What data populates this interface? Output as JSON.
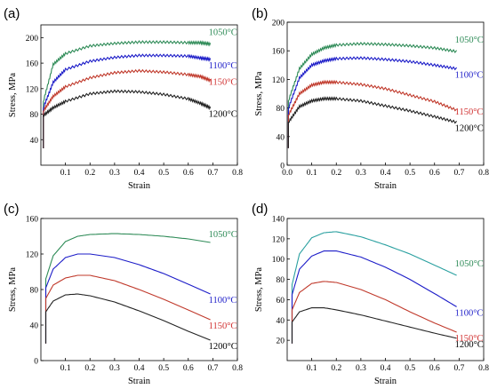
{
  "figure": {
    "panels": [
      {
        "label": "(a)",
        "chart_index": 0
      },
      {
        "label": "(b)",
        "chart_index": 1
      },
      {
        "label": "(c)",
        "chart_index": 2
      },
      {
        "label": "(d)",
        "chart_index": 3
      }
    ]
  },
  "chart_data": [
    {
      "type": "line",
      "xlabel": "Strain",
      "ylabel": "Stress, MPa",
      "xlim": [
        0,
        0.8
      ],
      "ylim": [
        0,
        220
      ],
      "xticks": [
        "0.1",
        "0.2",
        "0.3",
        "0.4",
        "0.5",
        "0.6",
        "0.7",
        "0.8"
      ],
      "yticks": [
        "40",
        "80",
        "120",
        "160",
        "200"
      ],
      "ytick_values": [
        40,
        80,
        120,
        160,
        200
      ],
      "grid": false,
      "serrated": true,
      "series": [
        {
          "name": "1050°C",
          "color": "#2e8b57",
          "label_color": "#2e8b57",
          "points": [
            [
              0.01,
              100
            ],
            [
              0.05,
              158
            ],
            [
              0.1,
              175
            ],
            [
              0.2,
              187
            ],
            [
              0.3,
              191
            ],
            [
              0.4,
              193
            ],
            [
              0.5,
              193
            ],
            [
              0.6,
              192
            ],
            [
              0.65,
              192
            ],
            [
              0.69,
              190
            ]
          ]
        },
        {
          "name": "1100°C",
          "color": "#1c1cc8",
          "label_color": "#1c1cc8",
          "points": [
            [
              0.01,
              90
            ],
            [
              0.05,
              130
            ],
            [
              0.1,
              150
            ],
            [
              0.2,
              163
            ],
            [
              0.3,
              169
            ],
            [
              0.4,
              172
            ],
            [
              0.5,
              172
            ],
            [
              0.6,
              171
            ],
            [
              0.65,
              168
            ],
            [
              0.69,
              166
            ]
          ]
        },
        {
          "name": "1150°C",
          "color": "#c0392b",
          "label_color": "#d03030",
          "points": [
            [
              0.01,
              85
            ],
            [
              0.05,
              108
            ],
            [
              0.1,
              123
            ],
            [
              0.2,
              137
            ],
            [
              0.3,
              145
            ],
            [
              0.4,
              148
            ],
            [
              0.5,
              146
            ],
            [
              0.6,
              142
            ],
            [
              0.65,
              139
            ],
            [
              0.69,
              133
            ]
          ]
        },
        {
          "name": "1200°C",
          "color": "#222222",
          "label_color": "#000000",
          "points": [
            [
              0.01,
              78
            ],
            [
              0.05,
              90
            ],
            [
              0.1,
              100
            ],
            [
              0.2,
              112
            ],
            [
              0.3,
              116
            ],
            [
              0.4,
              115
            ],
            [
              0.5,
              111
            ],
            [
              0.6,
              104
            ],
            [
              0.65,
              97
            ],
            [
              0.69,
              90
            ]
          ]
        }
      ]
    },
    {
      "type": "line",
      "xlabel": "Strain",
      "ylabel": "Stress, MPa",
      "xlim": [
        0,
        0.8
      ],
      "ylim": [
        0,
        200
      ],
      "xticks": [
        "0.0",
        "0.1",
        "0.2",
        "0.3",
        "0.4",
        "0.5",
        "0.6",
        "0.7",
        "0.8"
      ],
      "yticks": [
        "0",
        "40",
        "80",
        "120",
        "160",
        "200"
      ],
      "ytick_values": [
        0,
        40,
        80,
        120,
        160,
        200
      ],
      "grid": false,
      "serrated": true,
      "series": [
        {
          "name": "1050°C",
          "color": "#2e8b57",
          "label_color": "#2e8b57",
          "points": [
            [
              0.005,
              90
            ],
            [
              0.05,
              135
            ],
            [
              0.1,
              155
            ],
            [
              0.15,
              164
            ],
            [
              0.2,
              168
            ],
            [
              0.3,
              170
            ],
            [
              0.4,
              169
            ],
            [
              0.5,
              167
            ],
            [
              0.6,
              164
            ],
            [
              0.69,
              159
            ]
          ]
        },
        {
          "name": "1100°C",
          "color": "#1c1cc8",
          "label_color": "#1c1cc8",
          "points": [
            [
              0.005,
              80
            ],
            [
              0.05,
              122
            ],
            [
              0.1,
              140
            ],
            [
              0.15,
              146
            ],
            [
              0.2,
              149
            ],
            [
              0.3,
              150
            ],
            [
              0.4,
              148
            ],
            [
              0.5,
              145
            ],
            [
              0.6,
              140
            ],
            [
              0.69,
              135
            ]
          ]
        },
        {
          "name": "1150°C",
          "color": "#c0392b",
          "label_color": "#d03030",
          "points": [
            [
              0.005,
              70
            ],
            [
              0.05,
              100
            ],
            [
              0.1,
              112
            ],
            [
              0.15,
              116
            ],
            [
              0.2,
              116
            ],
            [
              0.3,
              113
            ],
            [
              0.4,
              107
            ],
            [
              0.5,
              98
            ],
            [
              0.6,
              89
            ],
            [
              0.69,
              77
            ]
          ]
        },
        {
          "name": "1200°C",
          "color": "#222222",
          "label_color": "#000000",
          "points": [
            [
              0.005,
              60
            ],
            [
              0.05,
              82
            ],
            [
              0.1,
              90
            ],
            [
              0.15,
              93
            ],
            [
              0.2,
              93
            ],
            [
              0.3,
              90
            ],
            [
              0.4,
              83
            ],
            [
              0.5,
              76
            ],
            [
              0.6,
              68
            ],
            [
              0.69,
              60
            ]
          ]
        }
      ]
    },
    {
      "type": "line",
      "xlabel": "Strain",
      "ylabel": "Stress, MPa",
      "xlim": [
        0,
        0.8
      ],
      "ylim": [
        0,
        160
      ],
      "xticks": [
        "0.1",
        "0.2",
        "0.3",
        "0.4",
        "0.5",
        "0.6",
        "0.7",
        "0.8"
      ],
      "yticks": [
        "0",
        "40",
        "80",
        "120",
        "160"
      ],
      "ytick_values": [
        0,
        40,
        80,
        120,
        160
      ],
      "grid": false,
      "serrated": false,
      "series": [
        {
          "name": "1050°C",
          "color": "#2e8b57",
          "label_color": "#2e8b57",
          "points": [
            [
              0.02,
              92
            ],
            [
              0.05,
              118
            ],
            [
              0.1,
              134
            ],
            [
              0.15,
              140
            ],
            [
              0.2,
              142
            ],
            [
              0.3,
              143
            ],
            [
              0.4,
              142
            ],
            [
              0.5,
              140
            ],
            [
              0.6,
              137
            ],
            [
              0.69,
              133
            ]
          ]
        },
        {
          "name": "1100°C",
          "color": "#1c1cc8",
          "label_color": "#1c1cc8",
          "points": [
            [
              0.02,
              82
            ],
            [
              0.05,
              103
            ],
            [
              0.1,
              116
            ],
            [
              0.15,
              120
            ],
            [
              0.2,
              120
            ],
            [
              0.3,
              116
            ],
            [
              0.4,
              108
            ],
            [
              0.5,
              98
            ],
            [
              0.6,
              86
            ],
            [
              0.69,
              75
            ]
          ]
        },
        {
          "name": "1150°C",
          "color": "#c0392b",
          "label_color": "#d03030",
          "points": [
            [
              0.02,
              70
            ],
            [
              0.05,
              85
            ],
            [
              0.1,
              93
            ],
            [
              0.15,
              96
            ],
            [
              0.2,
              96
            ],
            [
              0.3,
              90
            ],
            [
              0.4,
              80
            ],
            [
              0.5,
              69
            ],
            [
              0.6,
              57
            ],
            [
              0.69,
              46
            ]
          ]
        },
        {
          "name": "1200°C",
          "color": "#222222",
          "label_color": "#000000",
          "points": [
            [
              0.02,
              55
            ],
            [
              0.05,
              67
            ],
            [
              0.1,
              74
            ],
            [
              0.15,
              75
            ],
            [
              0.2,
              73
            ],
            [
              0.3,
              66
            ],
            [
              0.4,
              56
            ],
            [
              0.5,
              45
            ],
            [
              0.6,
              33
            ],
            [
              0.69,
              23
            ]
          ]
        }
      ]
    },
    {
      "type": "line",
      "xlabel": "Strain",
      "ylabel": "Stress, MPa",
      "xlim": [
        0,
        0.8
      ],
      "ylim": [
        0,
        140
      ],
      "xticks": [
        "0.1",
        "0.2",
        "0.3",
        "0.4",
        "0.5",
        "0.6",
        "0.7",
        "0.8"
      ],
      "yticks": [
        "20",
        "40",
        "60",
        "80",
        "100",
        "120",
        "140"
      ],
      "ytick_values": [
        20,
        40,
        60,
        80,
        100,
        120,
        140
      ],
      "grid": false,
      "serrated": false,
      "series": [
        {
          "name": "1050°C",
          "color": "#2aa0a0",
          "label_color": "#2e8b57",
          "points": [
            [
              0.02,
              75
            ],
            [
              0.05,
              105
            ],
            [
              0.1,
              121
            ],
            [
              0.15,
              126
            ],
            [
              0.2,
              127
            ],
            [
              0.3,
              122
            ],
            [
              0.4,
              114
            ],
            [
              0.5,
              105
            ],
            [
              0.6,
              94
            ],
            [
              0.69,
              84
            ]
          ]
        },
        {
          "name": "1100°C",
          "color": "#1c1cc8",
          "label_color": "#1c1cc8",
          "points": [
            [
              0.02,
              65
            ],
            [
              0.05,
              90
            ],
            [
              0.1,
              103
            ],
            [
              0.15,
              108
            ],
            [
              0.2,
              108
            ],
            [
              0.3,
              102
            ],
            [
              0.4,
              92
            ],
            [
              0.5,
              80
            ],
            [
              0.6,
              66
            ],
            [
              0.69,
              53
            ]
          ]
        },
        {
          "name": "1150°C",
          "color": "#c0392b",
          "label_color": "#d03030",
          "points": [
            [
              0.02,
              50
            ],
            [
              0.05,
              67
            ],
            [
              0.1,
              76
            ],
            [
              0.15,
              78
            ],
            [
              0.2,
              77
            ],
            [
              0.3,
              70
            ],
            [
              0.4,
              60
            ],
            [
              0.5,
              48
            ],
            [
              0.6,
              37
            ],
            [
              0.69,
              28
            ]
          ]
        },
        {
          "name": "1200°C",
          "color": "#222222",
          "label_color": "#000000",
          "points": [
            [
              0.02,
              38
            ],
            [
              0.05,
              48
            ],
            [
              0.1,
              52
            ],
            [
              0.15,
              52
            ],
            [
              0.2,
              50
            ],
            [
              0.3,
              45
            ],
            [
              0.4,
              39
            ],
            [
              0.5,
              33
            ],
            [
              0.6,
              27
            ],
            [
              0.69,
              22
            ]
          ]
        }
      ]
    }
  ]
}
